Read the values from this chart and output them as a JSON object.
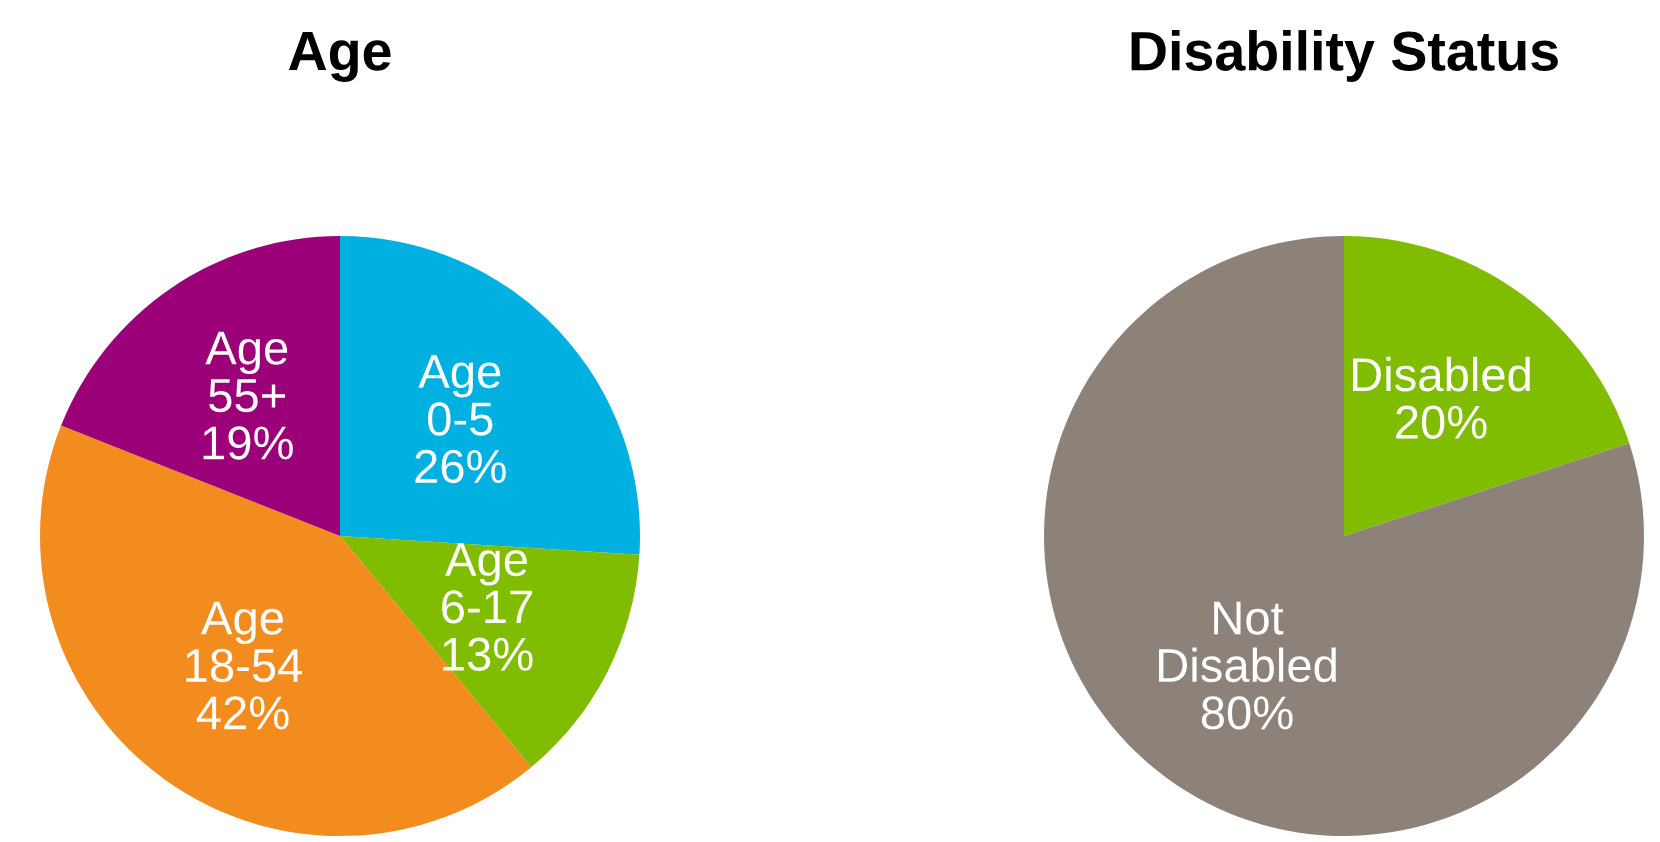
{
  "chart_data": [
    {
      "type": "pie",
      "title": "Age",
      "categories": [
        "Age\n0-5",
        "Age\n6-17",
        "Age\n18-54",
        "Age\n55+"
      ],
      "values": [
        26,
        13,
        42,
        19
      ],
      "value_labels": [
        "26%",
        "13%",
        "42%",
        "19%"
      ],
      "colors": [
        "#00b0e0",
        "#80bc00",
        "#f28c1e",
        "#9b0079"
      ]
    },
    {
      "type": "pie",
      "title": "Disability Status",
      "categories": [
        "Disabled",
        "Not\nDisabled"
      ],
      "values": [
        20,
        80
      ],
      "value_labels": [
        "20%",
        "80%"
      ],
      "colors": [
        "#80bc00",
        "#8c8279"
      ]
    }
  ]
}
